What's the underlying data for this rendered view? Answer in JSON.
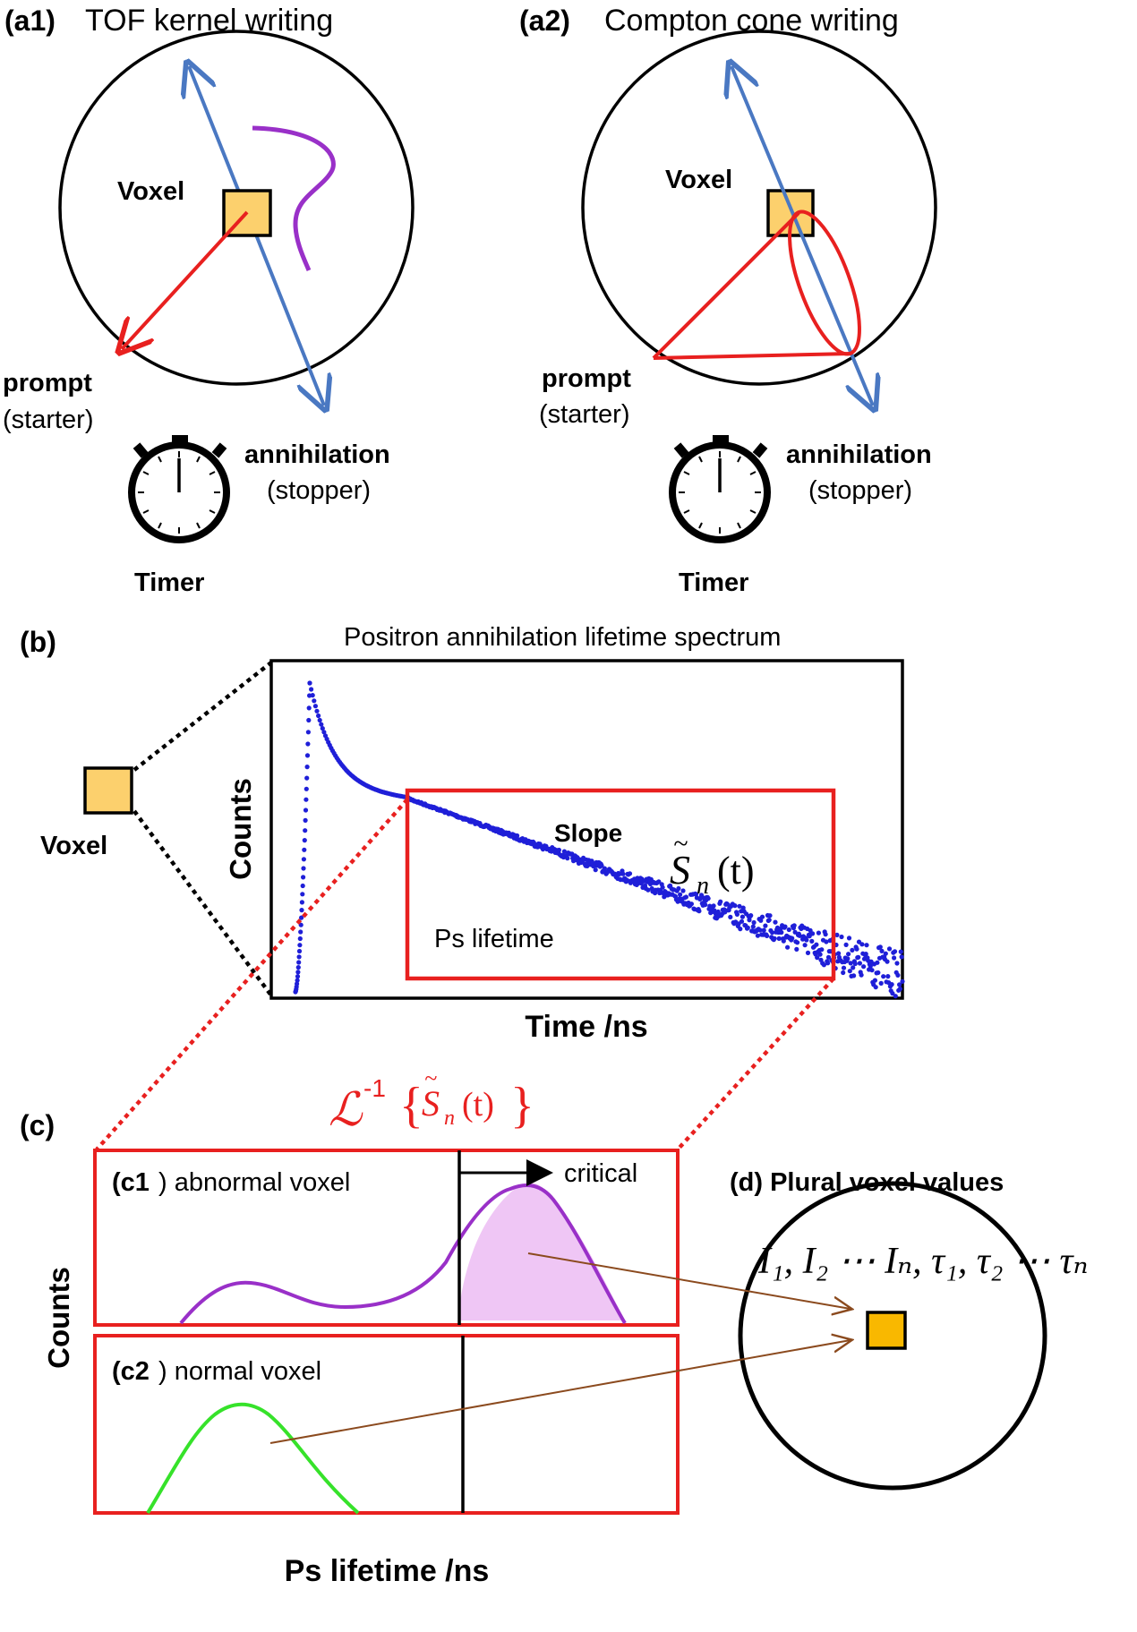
{
  "panel_a1": {
    "tag": "(a1)",
    "title": "TOF kernel writing",
    "voxel": "Voxel",
    "prompt": "prompt",
    "starter": "(starter)",
    "annihilation": "annihilation",
    "stopper": "(stopper)",
    "timer": "Timer"
  },
  "panel_a2": {
    "tag": "(a2)",
    "title": "Compton cone writing",
    "voxel": "Voxel",
    "prompt": "prompt",
    "starter": "(starter)",
    "annihilation": "annihilation",
    "stopper": "(stopper)",
    "timer": "Timer"
  },
  "panel_b": {
    "tag": "(b)",
    "title": "Positron annihilation lifetime spectrum",
    "voxel": "Voxel",
    "ylabel": "Counts",
    "xlabel": "Time /ns",
    "slope": "Slope",
    "ps_lifetime": "Ps lifetime",
    "s_symbol": "S",
    "s_sub": "n",
    "s_arg": "(t)"
  },
  "panel_c": {
    "tag": "(c)",
    "laplace_L": "ℒ",
    "laplace_exp": "-1",
    "laplace_s": "S",
    "laplace_sub": "n",
    "laplace_arg": "(t)",
    "ylabel": "Counts",
    "xlabel": "Ps lifetime /ns",
    "c1_tag": "(c1",
    "c1_label": ") abnormal voxel",
    "critical": "critical",
    "c2_tag": "(c2",
    "c2_label": ") normal voxel"
  },
  "panel_d": {
    "title": "(d) Plural voxel values",
    "values": "I₁, I₂ ⋯ Iₙ, τ₁, τ₂ ⋯ τₙ"
  },
  "colors": {
    "red": "#e8201f",
    "blue_arrow": "#4a78c2",
    "purple": "#9930c8",
    "purple_fill": "#efc6f5",
    "green": "#36e22a",
    "voxel_fill": "#fcd06d",
    "voxel_d_fill": "#f9b800",
    "brown": "#8b4a1e",
    "data_blue": "#1f1fd8"
  }
}
